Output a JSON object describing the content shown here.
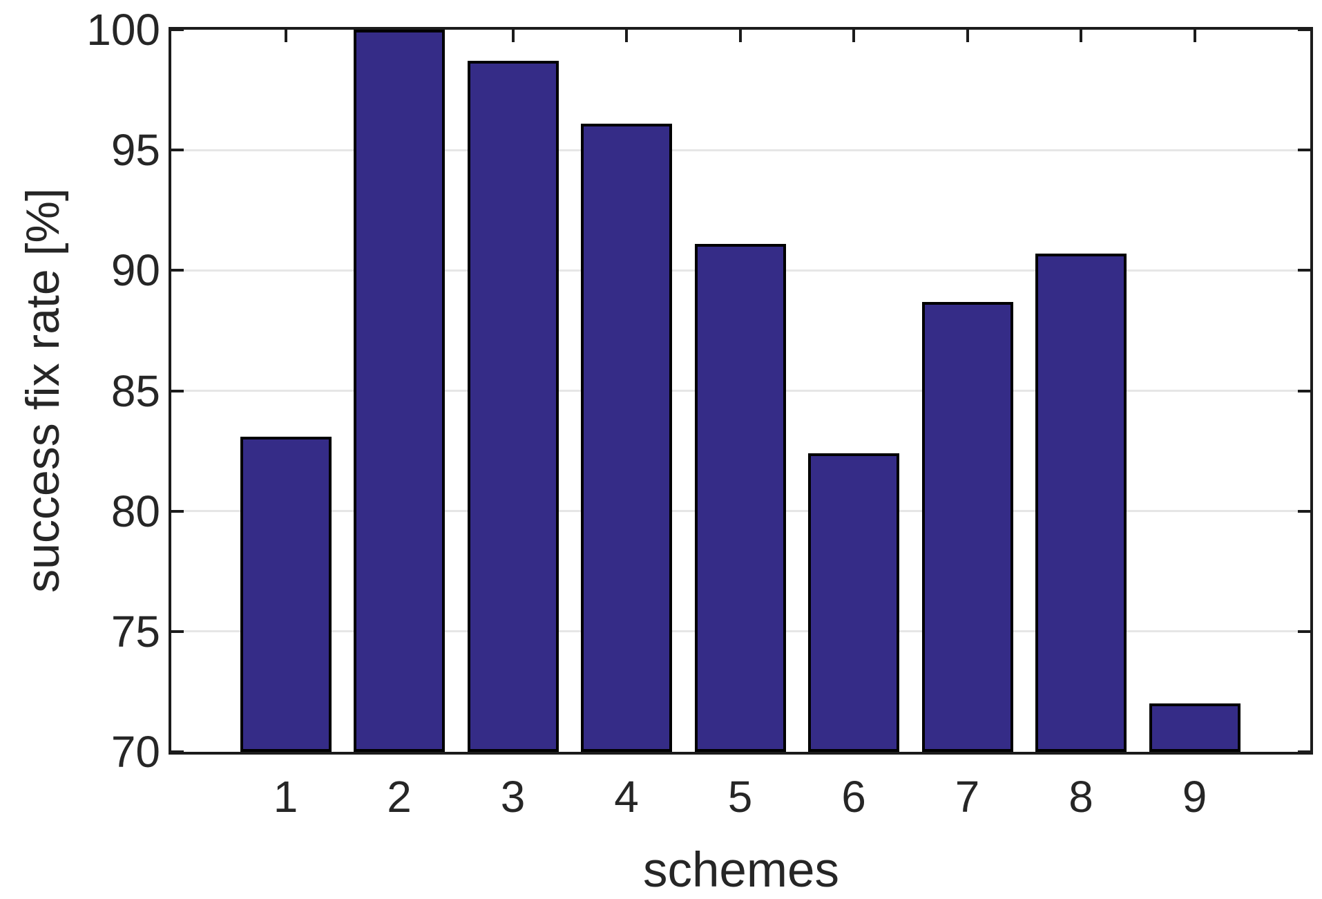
{
  "chart_data": {
    "type": "bar",
    "title": "",
    "xlabel": "schemes",
    "ylabel": "success fix rate [%]",
    "categories": [
      "1",
      "2",
      "3",
      "4",
      "5",
      "6",
      "7",
      "8",
      "9"
    ],
    "values": [
      83.1,
      100.0,
      98.7,
      96.1,
      91.1,
      82.4,
      88.7,
      90.7,
      72.0
    ],
    "ylim": [
      70,
      100
    ],
    "yticks": [
      70,
      75,
      80,
      85,
      90,
      95,
      100
    ],
    "grid": "horizontal-y",
    "legend": "none",
    "colors": {
      "bar_fill": "#352c87",
      "bar_edge": "#000000",
      "axis": "#1c1c1c",
      "gridline": "#e6e6e6",
      "text": "#262626",
      "background": "#ffffff"
    }
  }
}
